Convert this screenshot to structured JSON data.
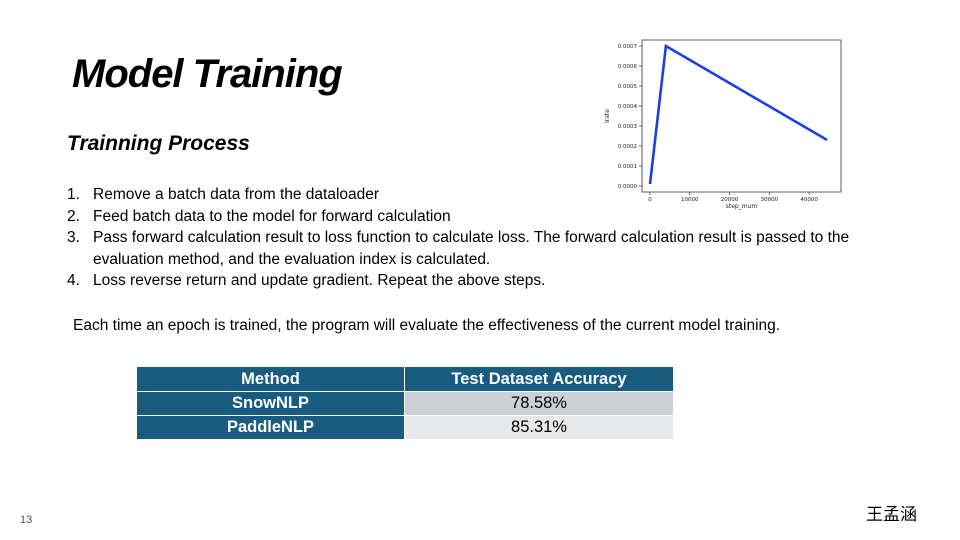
{
  "slide": {
    "title": "Model Training",
    "subtitle": "Trainning Process",
    "steps": [
      {
        "num": "1.",
        "text": "Remove a batch data from the dataloader"
      },
      {
        "num": "2.",
        "text": "Feed batch data to the model for forward calculation"
      },
      {
        "num": "3.",
        "text": "Pass forward calculation result to loss function to calculate loss. The forward calculation result is passed to the evaluation method, and the evaluation index is calculated."
      },
      {
        "num": "4.",
        "text": "Loss reverse return and update gradient. Repeat the above steps."
      }
    ],
    "summary": "Each time an epoch is trained, the program will evaluate the effectiveness of the current model training.",
    "page_number": "13",
    "author": "王孟涵"
  },
  "table": {
    "headers": [
      "Method",
      "Test Dataset Accuracy"
    ],
    "rows": [
      {
        "method": "SnowNLP",
        "accuracy": "78.58%"
      },
      {
        "method": "PaddleNLP",
        "accuracy": "85.31%"
      }
    ],
    "colors": {
      "header_bg": "#1a5c80",
      "row1_bg": "#ccd1d6",
      "row2_bg": "#e6e8ea"
    }
  },
  "chart_data": {
    "type": "line",
    "xlabel": "step_mum",
    "ylabel": "lrate",
    "xlim": [
      -2000,
      48000
    ],
    "ylim": [
      -3e-05,
      0.00073
    ],
    "xticks": [
      0,
      10000,
      20000,
      30000,
      40000
    ],
    "xtick_labels": [
      "0",
      "10000",
      "20000",
      "30000",
      "40000"
    ],
    "yticks": [
      0.0,
      0.0001,
      0.0002,
      0.0003,
      0.0004,
      0.0005,
      0.0006,
      0.0007
    ],
    "ytick_labels": [
      "0.0000",
      "0.0001",
      "0.0002",
      "0.0003",
      "0.0004",
      "0.0005",
      "0.0006",
      "0.0007"
    ],
    "grid": false,
    "series": [
      {
        "color": "#1f3ee0",
        "x": [
          0,
          4000,
          44500
        ],
        "y": [
          1e-05,
          0.0007,
          0.00023
        ]
      }
    ]
  }
}
